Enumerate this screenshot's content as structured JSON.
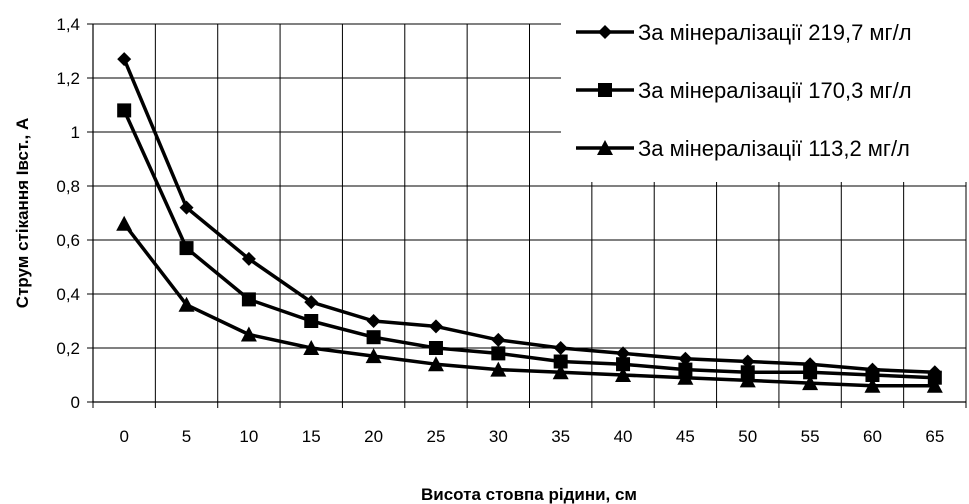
{
  "chart_data": {
    "type": "line",
    "xlabel": "Висота стовпа рідини, см",
    "ylabel": "Струм стікання Івст., А",
    "x": [
      0,
      5,
      10,
      15,
      20,
      25,
      30,
      35,
      40,
      45,
      50,
      55,
      60,
      65
    ],
    "x_tick_labels": [
      "0",
      "5",
      "10",
      "15",
      "20",
      "25",
      "30",
      "35",
      "40",
      "45",
      "50",
      "55",
      "60",
      "65"
    ],
    "ylim": [
      0,
      1.4
    ],
    "y_ticks": [
      0,
      0.2,
      0.4,
      0.6,
      0.8,
      1,
      1.2,
      1.4
    ],
    "y_tick_labels": [
      "0",
      "0,2",
      "0,4",
      "0,6",
      "0,8",
      "1",
      "1,2",
      "1,4"
    ],
    "grid": true,
    "legend_position": "top-right",
    "series": [
      {
        "name": "За мінералізації 219,7 мг/л",
        "marker": "diamond",
        "values": [
          1.27,
          0.72,
          0.53,
          0.37,
          0.3,
          0.28,
          0.23,
          0.2,
          0.18,
          0.16,
          0.15,
          0.14,
          0.12,
          0.11
        ]
      },
      {
        "name": "За мінералізації 170,3 мг/л",
        "marker": "square",
        "values": [
          1.08,
          0.57,
          0.38,
          0.3,
          0.24,
          0.2,
          0.18,
          0.15,
          0.14,
          0.12,
          0.11,
          0.11,
          0.1,
          0.09
        ]
      },
      {
        "name": "За мінералізації 113,2 мг/л",
        "marker": "triangle",
        "values": [
          0.66,
          0.36,
          0.25,
          0.2,
          0.17,
          0.14,
          0.12,
          0.11,
          0.1,
          0.09,
          0.08,
          0.07,
          0.06,
          0.06
        ]
      }
    ]
  }
}
